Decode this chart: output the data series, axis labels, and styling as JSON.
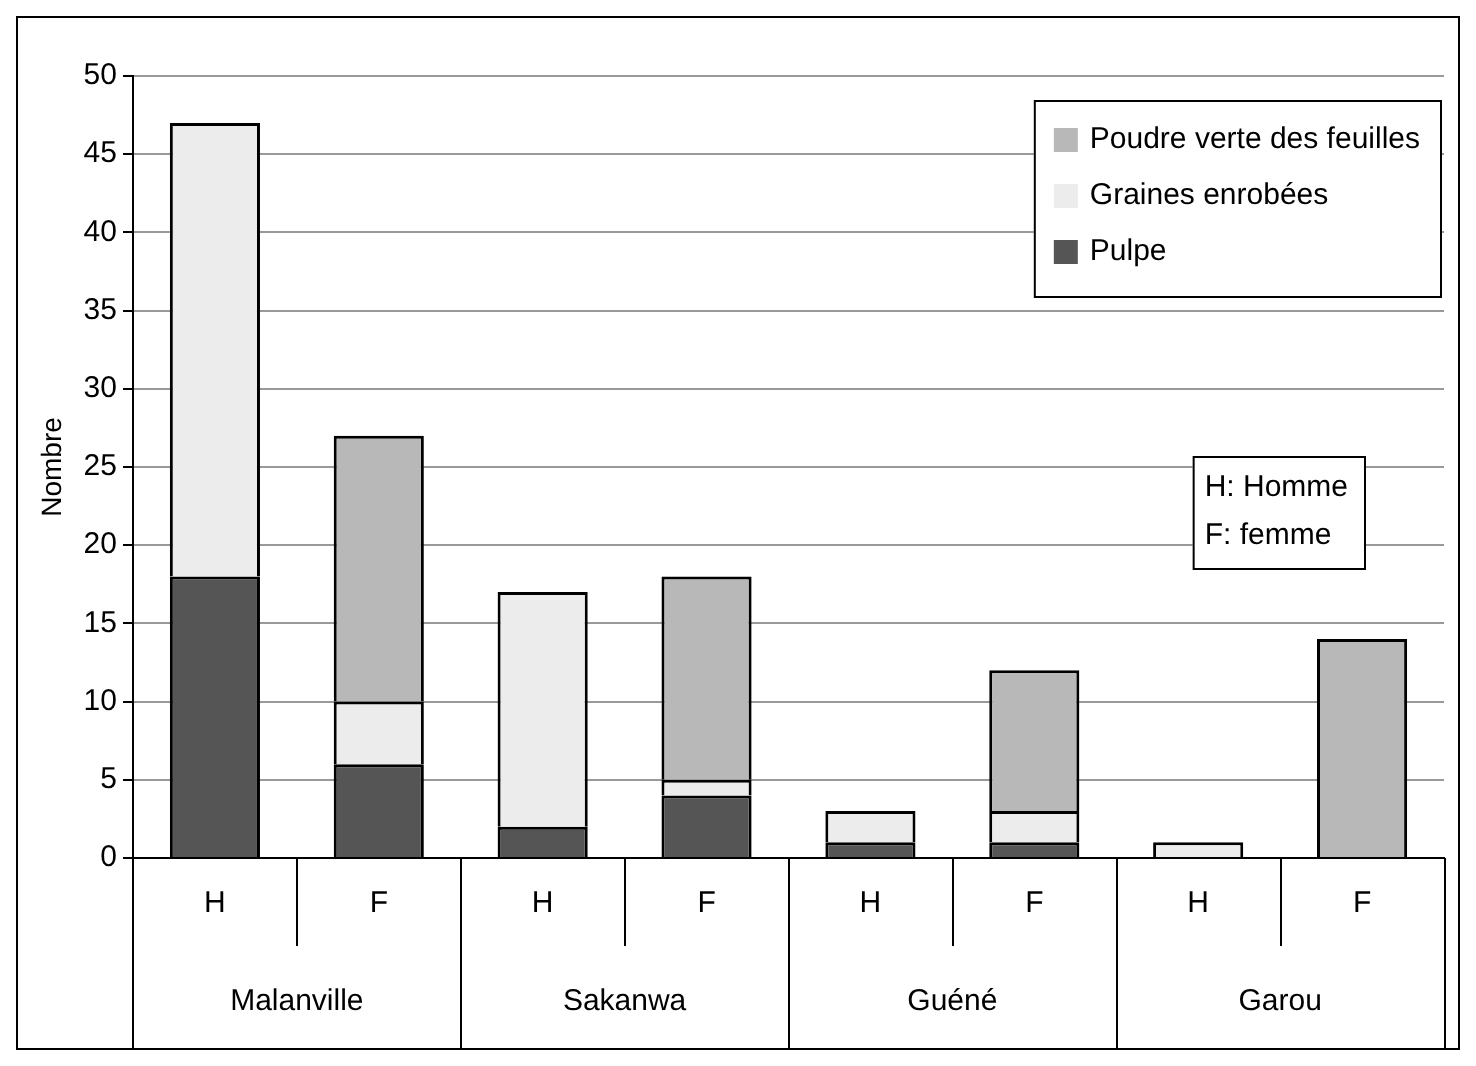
{
  "chart_data": {
    "type": "bar",
    "ylabel": "Nombre",
    "categories": [
      "H",
      "F",
      "H",
      "F",
      "H",
      "F",
      "H",
      "F"
    ],
    "stacked": true,
    "series": [
      {
        "name": "Pulpe",
        "color": "#555555",
        "values": [
          18,
          6,
          2,
          4,
          1,
          1,
          0,
          0
        ]
      },
      {
        "name": "Graines enrobées",
        "color": "#ececec",
        "values": [
          29,
          4,
          15,
          1,
          2,
          2,
          1,
          0
        ]
      },
      {
        "name": "Poudre verte des feuilles",
        "color": "#b8b8b8",
        "values": [
          0,
          17,
          0,
          13,
          0,
          9,
          0,
          14
        ]
      }
    ],
    "ylim": [
      0,
      50
    ],
    "yticks": [
      0,
      5,
      10,
      15,
      20,
      25,
      30,
      35,
      40,
      45,
      50
    ],
    "grid": "y",
    "legend": "top right",
    "annotations": [
      "Malanville",
      "Sakanwa",
      "Guéné",
      "Garou",
      "H: Homme",
      "F: femme"
    ]
  }
}
